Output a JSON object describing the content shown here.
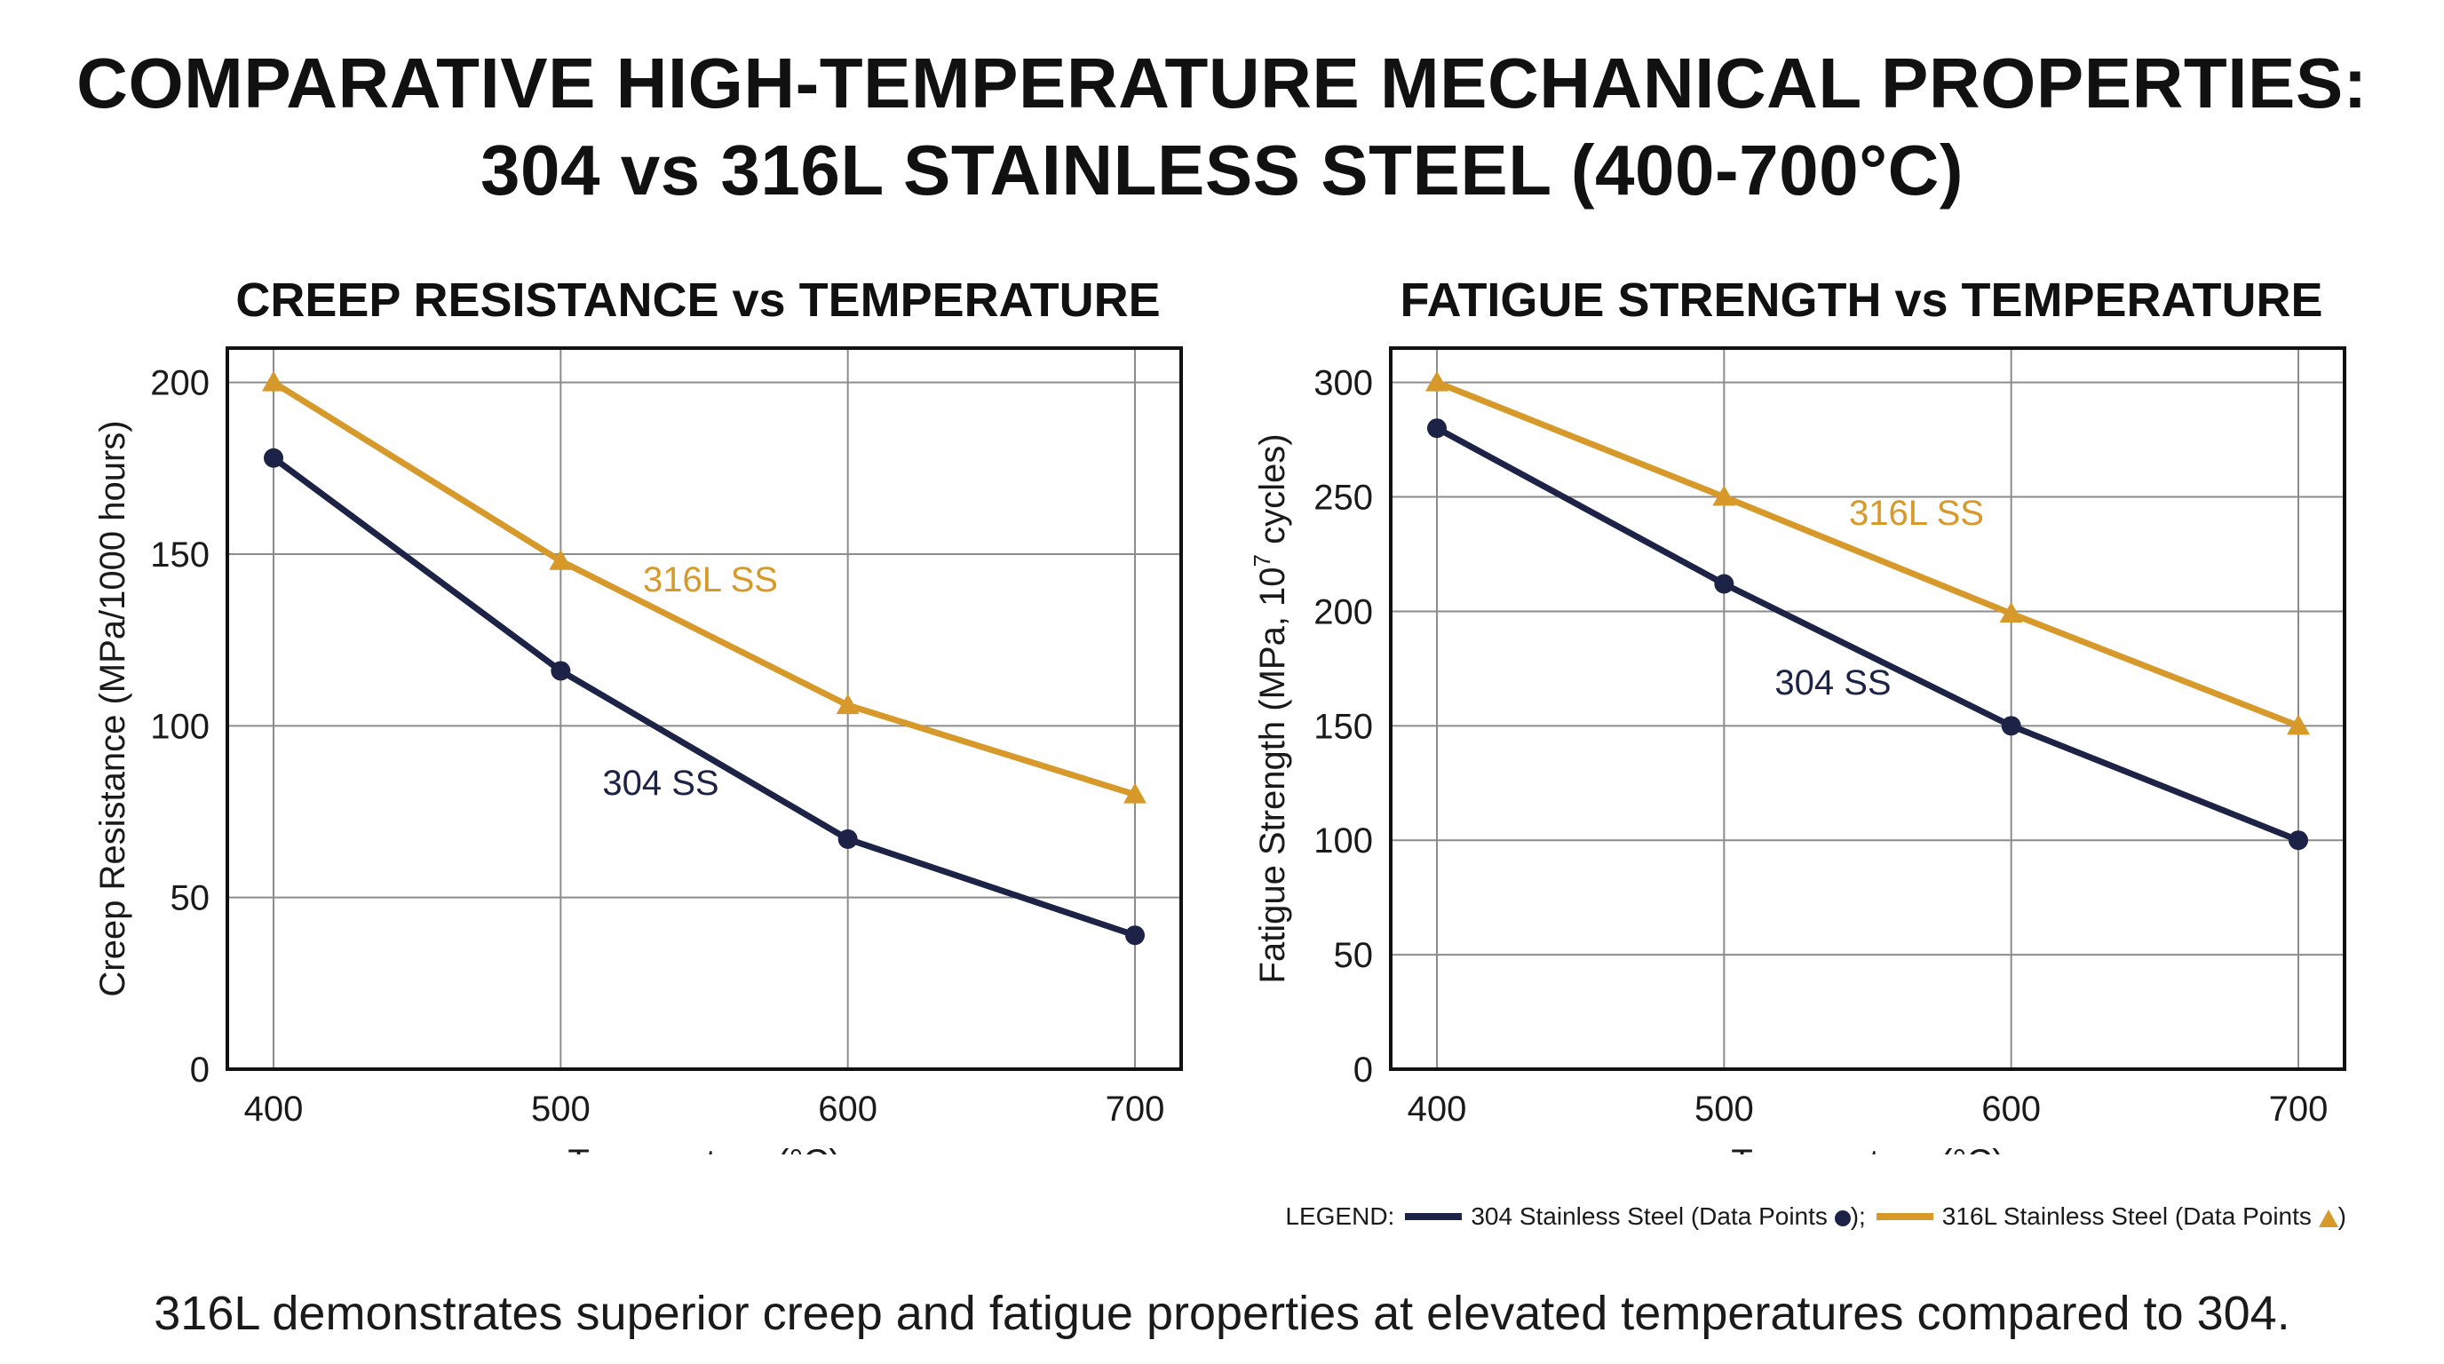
{
  "title_line1": "COMPARATIVE HIGH-TEMPERATURE MECHANICAL PROPERTIES:",
  "title_line2": "304 vs 316L STAINLESS STEEL (400-700°C)",
  "colors": {
    "series_304": "#1c2346",
    "series_316L": "#d6992a",
    "grid": "#8c8c8c",
    "axis": "#111111"
  },
  "legend": {
    "prefix": "LEGEND:",
    "item_304": "304 Stainless Steel (Data Points",
    "item_304_suffix": ");",
    "item_316L": "316L Stainless Steel (Data Points",
    "item_316L_suffix": ")"
  },
  "footer": "316L demonstrates superior creep and fatigue properties at elevated temperatures compared to 304.",
  "chart_data": [
    {
      "type": "line",
      "title": "CREEP RESISTANCE vs TEMPERATURE",
      "xlabel": "Temperature (°C)",
      "ylabel": "Creep Resistance (MPa/1000 hours)",
      "x": [
        400,
        500,
        600,
        700
      ],
      "xticks": [
        400,
        500,
        600,
        700
      ],
      "yticks": [
        0,
        50,
        100,
        150,
        200
      ],
      "ylim": [
        0,
        210
      ],
      "grid": true,
      "series": [
        {
          "name": "316L SS",
          "marker": "triangle",
          "values": [
            200,
            148,
            106,
            80
          ]
        },
        {
          "name": "304 SS",
          "marker": "circle",
          "values": [
            178,
            116,
            67,
            39
          ]
        }
      ]
    },
    {
      "type": "line",
      "title": "FATIGUE STRENGTH vs TEMPERATURE",
      "xlabel": "Temperature (°C)",
      "ylabel_main": "Fatigue Strength (MPa, 10",
      "ylabel_sup": "7",
      "ylabel_end": " cycles)",
      "x": [
        400,
        500,
        600,
        700
      ],
      "xticks": [
        400,
        500,
        600,
        700
      ],
      "yticks": [
        0,
        50,
        100,
        150,
        200,
        250,
        300
      ],
      "ylim": [
        0,
        315
      ],
      "grid": true,
      "series": [
        {
          "name": "316L SS",
          "marker": "triangle",
          "values": [
            300,
            250,
            199,
            150
          ]
        },
        {
          "name": "304 SS",
          "marker": "circle",
          "values": [
            280,
            212,
            150,
            100
          ]
        }
      ]
    }
  ]
}
